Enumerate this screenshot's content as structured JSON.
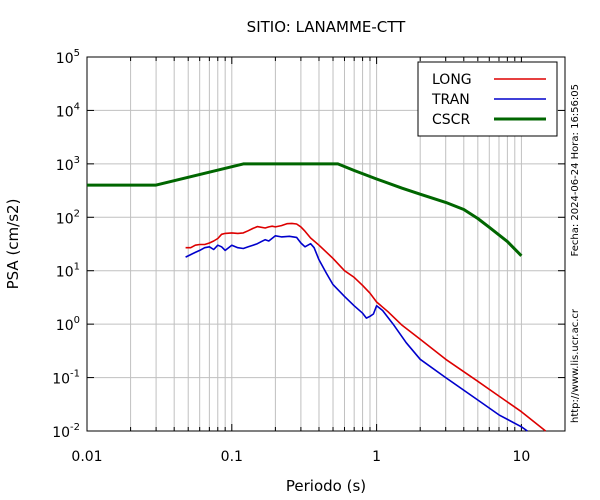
{
  "chart_data": {
    "type": "line",
    "title": "SITIO: LANAMME-CTT",
    "xlabel": "Periodo (s)",
    "ylabel": "PSA (cm/s2)",
    "xscale": "log",
    "yscale": "log",
    "xlim": [
      0.01,
      20
    ],
    "ylim": [
      0.01,
      100000
    ],
    "grid": true,
    "legend_position": "top-right",
    "x_ticks": [
      {
        "value": 0.01,
        "label": "0.01"
      },
      {
        "value": 0.1,
        "label": "0.1"
      },
      {
        "value": 1,
        "label": "1"
      },
      {
        "value": 10,
        "label": "10"
      }
    ],
    "y_ticks": [
      {
        "value": 100000,
        "base": "10",
        "exp": "5"
      },
      {
        "value": 10000,
        "base": "10",
        "exp": "4"
      },
      {
        "value": 1000,
        "base": "10",
        "exp": "3"
      },
      {
        "value": 100,
        "base": "10",
        "exp": "2"
      },
      {
        "value": 10,
        "base": "10",
        "exp": "1"
      },
      {
        "value": 1,
        "base": "10",
        "exp": "0"
      },
      {
        "value": 0.1,
        "base": "10",
        "exp": "-1"
      },
      {
        "value": 0.01,
        "base": "10",
        "exp": "-2"
      }
    ],
    "series": [
      {
        "name": "LONG",
        "color": "#dd0000",
        "width": 1.6,
        "x": [
          0.048,
          0.052,
          0.056,
          0.06,
          0.065,
          0.07,
          0.075,
          0.08,
          0.085,
          0.09,
          0.1,
          0.11,
          0.12,
          0.13,
          0.14,
          0.15,
          0.17,
          0.18,
          0.19,
          0.2,
          0.22,
          0.24,
          0.26,
          0.28,
          0.3,
          0.32,
          0.35,
          0.4,
          0.5,
          0.6,
          0.7,
          0.8,
          0.9,
          1.0,
          1.2,
          1.5,
          2.0,
          3.0,
          5.0,
          7.0,
          10.0,
          14.7
        ],
        "y": [
          27,
          27,
          30,
          31,
          31,
          33,
          36,
          40,
          48,
          50,
          51,
          50,
          51,
          56,
          62,
          67,
          63,
          66,
          68,
          66,
          70,
          76,
          77,
          75,
          66,
          55,
          41,
          30,
          17,
          10,
          7.5,
          5.3,
          3.8,
          2.6,
          1.7,
          0.95,
          0.52,
          0.22,
          0.085,
          0.045,
          0.023,
          0.01
        ]
      },
      {
        "name": "TRAN",
        "color": "#0000cc",
        "width": 1.6,
        "x": [
          0.048,
          0.052,
          0.056,
          0.06,
          0.065,
          0.07,
          0.075,
          0.08,
          0.085,
          0.09,
          0.095,
          0.1,
          0.11,
          0.12,
          0.13,
          0.14,
          0.15,
          0.16,
          0.17,
          0.18,
          0.2,
          0.22,
          0.25,
          0.28,
          0.3,
          0.32,
          0.35,
          0.37,
          0.4,
          0.45,
          0.5,
          0.6,
          0.7,
          0.8,
          0.85,
          0.9,
          0.95,
          1.0,
          1.1,
          1.3,
          1.6,
          2.0,
          3.0,
          5.0,
          7.0,
          10.0,
          11.0
        ],
        "y": [
          18,
          20,
          22,
          24,
          27,
          28,
          25,
          30,
          28,
          24,
          27,
          30,
          27,
          26,
          28,
          30,
          32,
          35,
          38,
          36,
          45,
          43,
          44,
          42,
          33,
          28,
          32,
          27,
          16,
          9,
          5.5,
          3.3,
          2.2,
          1.6,
          1.3,
          1.4,
          1.55,
          2.2,
          1.8,
          1.0,
          0.45,
          0.22,
          0.1,
          0.038,
          0.02,
          0.012,
          0.01
        ]
      },
      {
        "name": "CSCR",
        "color": "#006600",
        "width": 3,
        "x": [
          0.01,
          0.03,
          0.12,
          0.54,
          0.7,
          1.0,
          1.5,
          2.0,
          3.0,
          4.0,
          5.0,
          6.0,
          8.0,
          10.0
        ],
        "y": [
          400,
          400,
          1000,
          1000,
          750,
          520,
          350,
          270,
          190,
          140,
          95,
          65,
          35,
          19
        ]
      }
    ],
    "side_text_right": "Fecha: 2024-06-24 Hora: 16:56:05",
    "side_text_bottom": "http://www.lis.ucr.ac.cr"
  }
}
